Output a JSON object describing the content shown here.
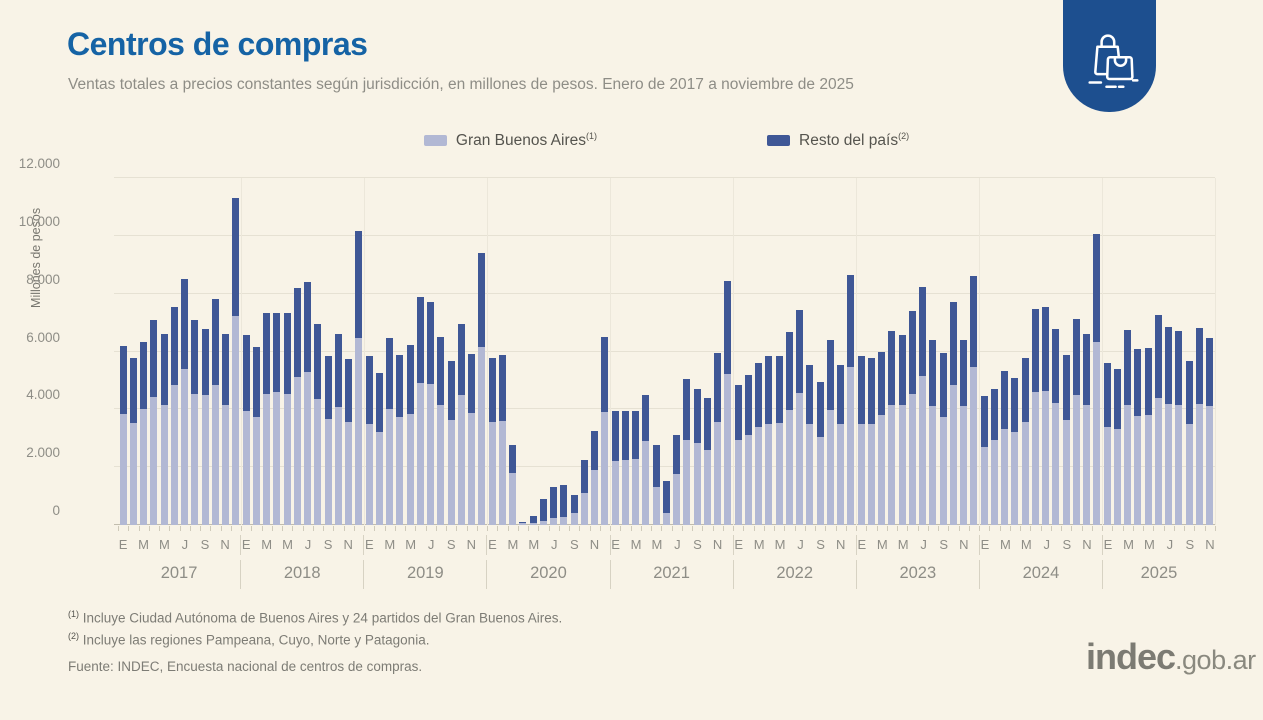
{
  "header": {
    "title": "Centros de compras",
    "subtitle": "Ventas totales a precios constantes según jurisdicción, en millones de pesos. Enero de 2017 a noviembre de 2025"
  },
  "legend": {
    "items": [
      {
        "label": "Gran Buenos Aires",
        "sup": "(1)",
        "color": "#b2b8d4"
      },
      {
        "label": "Resto del país",
        "sup": "(2)",
        "color": "#3f5796"
      }
    ]
  },
  "footnotes": [
    {
      "sup": "(1)",
      "text": " Incluye Ciudad Autónoma de Buenos Aires y 24 partidos del Gran Buenos Aires."
    },
    {
      "sup": "(2)",
      "text": " Incluye las regiones Pampeana, Cuyo, Norte y Patagonia."
    }
  ],
  "source": "Fuente: INDEC, Encuesta nacional de centros de compras.",
  "logo": {
    "brand": "indec",
    "suffix": ".gob.ar"
  },
  "colors": {
    "background": "#f8f3e7",
    "title_blue": "#1563a5",
    "badge_blue": "#1d4f8f",
    "gba_bar": "#b2b8d4",
    "resto_bar": "#3f5796"
  },
  "chart_data": {
    "type": "bar",
    "stacked": true,
    "title": "Centros de compras",
    "xlabel": "",
    "ylabel": "Millones de pesos",
    "ylim": [
      0,
      12000
    ],
    "yticks": [
      0,
      2000,
      4000,
      6000,
      8000,
      10000,
      12000
    ],
    "ytick_labels": [
      "0",
      "2.000",
      "4.000",
      "6.000",
      "8.000",
      "10.000",
      "12.000"
    ],
    "grid": true,
    "legend_position": "top-center",
    "month_labels": [
      "E",
      "F",
      "M",
      "A",
      "M",
      "J",
      "J",
      "A",
      "S",
      "O",
      "N",
      "D"
    ],
    "series_names": [
      "Gran Buenos Aires",
      "Resto del país"
    ],
    "years": [
      {
        "year": "2017",
        "gba": [
          3850,
          3530,
          4020,
          4430,
          4160,
          4830,
          5400,
          4540,
          4500,
          4830,
          4140,
          7240
        ],
        "resto": [
          2350,
          2240,
          2320,
          2660,
          2450,
          2700,
          3100,
          2550,
          2280,
          2990,
          2470,
          4060
        ]
      },
      {
        "year": "2018",
        "gba": [
          3960,
          3740,
          4540,
          4600,
          4540,
          5120,
          5290,
          4370,
          3680,
          4080,
          3560,
          6480
        ],
        "resto": [
          2620,
          2410,
          2780,
          2720,
          2780,
          3080,
          3120,
          2580,
          2180,
          2530,
          2190,
          3680
        ]
      },
      {
        "year": "2019",
        "gba": [
          3510,
          3220,
          4020,
          3740,
          3850,
          4910,
          4890,
          4160,
          3620,
          4510,
          3870,
          6170
        ],
        "resto": [
          2350,
          2040,
          2440,
          2150,
          2380,
          2960,
          2830,
          2330,
          2040,
          2440,
          2050,
          3250
        ]
      },
      {
        "year": "2020",
        "gba": [
          3560,
          3590,
          1800,
          60,
          80,
          140,
          230,
          290,
          400,
          1100,
          1900,
          3910
        ],
        "resto": [
          2210,
          2300,
          980,
          60,
          230,
          760,
          1090,
          1110,
          650,
          1140,
          1340,
          2580
        ]
      },
      {
        "year": "2021",
        "gba": [
          2200,
          2240,
          2300,
          2900,
          1300,
          400,
          1750,
          2950,
          2840,
          2610,
          3560,
          5230
        ],
        "resto": [
          1730,
          1690,
          1630,
          1580,
          1460,
          1120,
          1350,
          2110,
          1860,
          1780,
          2380,
          3220
        ]
      },
      {
        "year": "2022",
        "gba": [
          2930,
          3100,
          3390,
          3500,
          3540,
          3970,
          4580,
          3510,
          3050,
          3990,
          3510,
          5460
        ],
        "resto": [
          1900,
          2100,
          2210,
          2360,
          2320,
          2700,
          2870,
          2010,
          1890,
          2420,
          2010,
          3180
        ]
      },
      {
        "year": "2023",
        "gba": [
          3510,
          3510,
          3790,
          4160,
          4160,
          4540,
          5170,
          4110,
          3740,
          4830,
          4110,
          5480
        ],
        "resto": [
          2350,
          2260,
          2210,
          2560,
          2420,
          2870,
          3050,
          2300,
          2200,
          2890,
          2290,
          3140
        ]
      },
      {
        "year": "2024",
        "gba": [
          2700,
          2930,
          3330,
          3220,
          3560,
          4600,
          4620,
          4220,
          3620,
          4480,
          4160,
          6320
        ],
        "resto": [
          1750,
          1780,
          1980,
          1870,
          2210,
          2870,
          2910,
          2560,
          2270,
          2650,
          2450,
          3760
        ]
      },
      {
        "year": "2025",
        "gba": [
          3390,
          3330,
          4160,
          3770,
          3820,
          4390,
          4200,
          4160,
          3510,
          4200,
          4100
        ],
        "resto": [
          2210,
          2070,
          2600,
          2320,
          2300,
          2890,
          2640,
          2540,
          2150,
          2610,
          2360
        ]
      }
    ]
  }
}
